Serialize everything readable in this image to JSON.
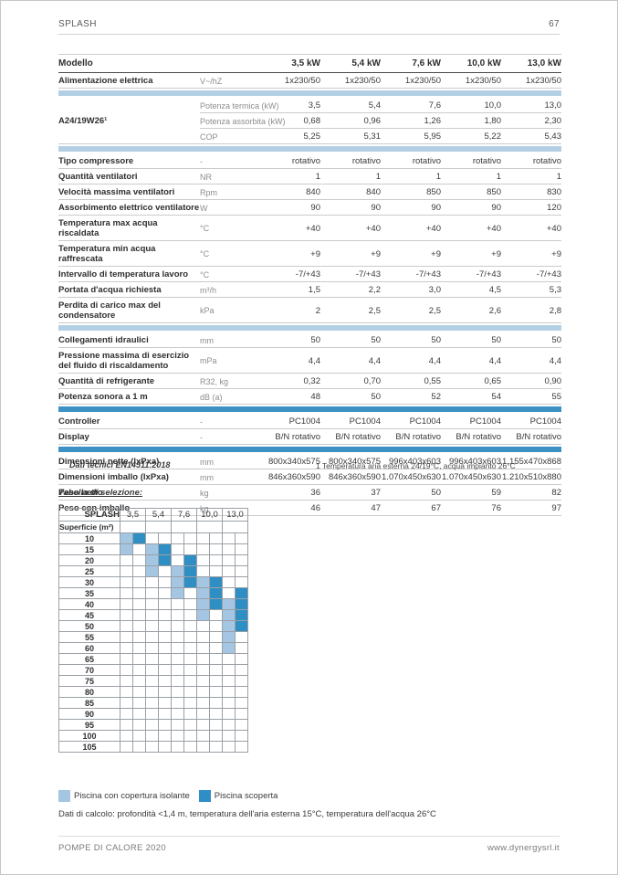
{
  "header": {
    "title": "SPLASH",
    "page_number": "67"
  },
  "footer": {
    "left": "POMPE DI CALORE 2020",
    "right": "www.dynergysrl.it"
  },
  "colors": {
    "bar_light": "#b3cfe4",
    "bar_medium": "#3d91c3",
    "cell_covered": "#a5c6e2",
    "cell_uncovered": "#2f8ec4"
  },
  "spec_table": {
    "model_header": {
      "label": "Modello",
      "values": [
        "3,5 kW",
        "5,4 kW",
        "7,6 kW",
        "10,0 kW",
        "13,0 kW"
      ]
    },
    "rows": [
      {
        "type": "row",
        "label": "Alimentazione elettrica",
        "unit": "V~/hZ",
        "values": [
          "1x230/50",
          "1x230/50",
          "1x230/50",
          "1x230/50",
          "1x230/50"
        ]
      },
      {
        "type": "bar",
        "variant": "bar_light"
      },
      {
        "type": "group",
        "label": "A24/19W26¹",
        "subrows": [
          {
            "label": "Potenza termica (kW)",
            "values": [
              "3,5",
              "5,4",
              "7,6",
              "10,0",
              "13,0"
            ]
          },
          {
            "label": "Potenza assorbita (kW)",
            "values": [
              "0,68",
              "0,96",
              "1,26",
              "1,80",
              "2,30"
            ]
          },
          {
            "label": "COP",
            "values": [
              "5,25",
              "5,31",
              "5,95",
              "5,22",
              "5,43"
            ]
          }
        ]
      },
      {
        "type": "bar",
        "variant": "bar_light"
      },
      {
        "type": "row",
        "label": "Tipo compressore",
        "unit": "-",
        "values": [
          "rotativo",
          "rotativo",
          "rotativo",
          "rotativo",
          "rotativo"
        ]
      },
      {
        "type": "row",
        "label": "Quantità ventilatori",
        "unit": "NR",
        "values": [
          "1",
          "1",
          "1",
          "1",
          "1"
        ]
      },
      {
        "type": "row",
        "label": "Velocità massima ventilatori",
        "unit": "Rpm",
        "values": [
          "840",
          "840",
          "850",
          "850",
          "830"
        ]
      },
      {
        "type": "row",
        "label": "Assorbimento elettrico ventilatore",
        "unit": "W",
        "values": [
          "90",
          "90",
          "90",
          "90",
          "120"
        ]
      },
      {
        "type": "row",
        "label": "Temperatura max acqua riscaldata",
        "unit": "°C",
        "values": [
          "+40",
          "+40",
          "+40",
          "+40",
          "+40"
        ]
      },
      {
        "type": "row",
        "label": "Temperatura min acqua raffrescata",
        "unit": "°C",
        "values": [
          "+9",
          "+9",
          "+9",
          "+9",
          "+9"
        ]
      },
      {
        "type": "row",
        "label": "Intervallo di temperatura lavoro",
        "unit": "°C",
        "values": [
          "-7/+43",
          "-7/+43",
          "-7/+43",
          "-7/+43",
          "-7/+43"
        ]
      },
      {
        "type": "row",
        "label": "Portata d'acqua richiesta",
        "unit": "m³/h",
        "values": [
          "1,5",
          "2,2",
          "3,0",
          "4,5",
          "5,3"
        ]
      },
      {
        "type": "row",
        "label": "Perdita di carico max del condensatore",
        "unit": "kPa",
        "values": [
          "2",
          "2,5",
          "2,5",
          "2,6",
          "2,8"
        ]
      },
      {
        "type": "bar",
        "variant": "bar_light"
      },
      {
        "type": "row",
        "label": "Collegamenti idraulici",
        "unit": "mm",
        "values": [
          "50",
          "50",
          "50",
          "50",
          "50"
        ]
      },
      {
        "type": "row",
        "label": "Pressione massima di esercizio del fluido di riscaldamento",
        "unit": "mPa",
        "values": [
          "4,4",
          "4,4",
          "4,4",
          "4,4",
          "4,4"
        ]
      },
      {
        "type": "row",
        "label": "Quantità di refrigerante",
        "unit": "R32, kg",
        "values": [
          "0,32",
          "0,70",
          "0,55",
          "0,65",
          "0,90"
        ]
      },
      {
        "type": "row",
        "label": "Potenza sonora a 1 m",
        "unit": "dB (a)",
        "values": [
          "48",
          "50",
          "52",
          "54",
          "55"
        ]
      },
      {
        "type": "bar",
        "variant": "bar_medium"
      },
      {
        "type": "row",
        "label": "Controller",
        "unit": "-",
        "values": [
          "PC1004",
          "PC1004",
          "PC1004",
          "PC1004",
          "PC1004"
        ]
      },
      {
        "type": "row",
        "label": "Display",
        "unit": "-",
        "values": [
          "B/N rotativo",
          "B/N rotativo",
          "B/N rotativo",
          "B/N rotativo",
          "B/N rotativo"
        ]
      },
      {
        "type": "bar",
        "variant": "bar_medium"
      },
      {
        "type": "row",
        "label": "Dimensioni nette (lxPxa)",
        "unit": "mm",
        "values": [
          "800x340x575",
          "800x340x575",
          "996x403x603",
          "996x403x603",
          "1.155x470x868"
        ]
      },
      {
        "type": "row",
        "label": "Dimensioni imballo (lxPxa)",
        "unit": "mm",
        "values": [
          "846x360x590",
          "846x360x590",
          "1.070x450x630",
          "1.070x450x630",
          "1.210x510x880"
        ]
      },
      {
        "type": "row",
        "label": "Peso netto",
        "unit": "kg",
        "values": [
          "36",
          "37",
          "50",
          "59",
          "82"
        ]
      },
      {
        "type": "row",
        "label": "Peso con imballo",
        "unit": "kg",
        "values": [
          "46",
          "47",
          "67",
          "76",
          "97"
        ]
      }
    ],
    "note_left": "Dati tecnici EN14511:2018",
    "note_right": "1  Temperatura aria esterna 24/19°C, acqua impianto 26°C"
  },
  "selection_table": {
    "title": "Tabella di selezione:",
    "corner_top": "SPLASH",
    "corner_bottom": "Superficie (m²)",
    "models": [
      "3,5",
      "5,4",
      "7,6",
      "10,0",
      "13,0"
    ],
    "rows": [
      {
        "surface": "10",
        "cells": "1200000000"
      },
      {
        "surface": "15",
        "cells": "1012000000"
      },
      {
        "surface": "20",
        "cells": "0012020000"
      },
      {
        "surface": "25",
        "cells": "0010120000"
      },
      {
        "surface": "30",
        "cells": "0000121200"
      },
      {
        "surface": "35",
        "cells": "0000101202"
      },
      {
        "surface": "40",
        "cells": "0000001212"
      },
      {
        "surface": "45",
        "cells": "0000001012"
      },
      {
        "surface": "50",
        "cells": "0000000012"
      },
      {
        "surface": "55",
        "cells": "0000000010"
      },
      {
        "surface": "60",
        "cells": "0000000010"
      },
      {
        "surface": "65",
        "cells": "0000000000"
      },
      {
        "surface": "70",
        "cells": "0000000000"
      },
      {
        "surface": "75",
        "cells": "0000000000"
      },
      {
        "surface": "80",
        "cells": "0000000000"
      },
      {
        "surface": "85",
        "cells": "0000000000"
      },
      {
        "surface": "90",
        "cells": "0000000000"
      },
      {
        "surface": "95",
        "cells": "0000000000"
      },
      {
        "surface": "100",
        "cells": "0000000000"
      },
      {
        "surface": "105",
        "cells": "0000000000"
      }
    ],
    "legend": [
      {
        "color_key": "cell_covered",
        "label": "Piscina con copertura isolante"
      },
      {
        "color_key": "cell_uncovered",
        "label": "Piscina scoperta"
      }
    ],
    "calc_note": "Dati di calcolo: profondità <1,4 m, temperatura dell'aria esterna 15°C, temperatura dell'acqua 26°C"
  }
}
